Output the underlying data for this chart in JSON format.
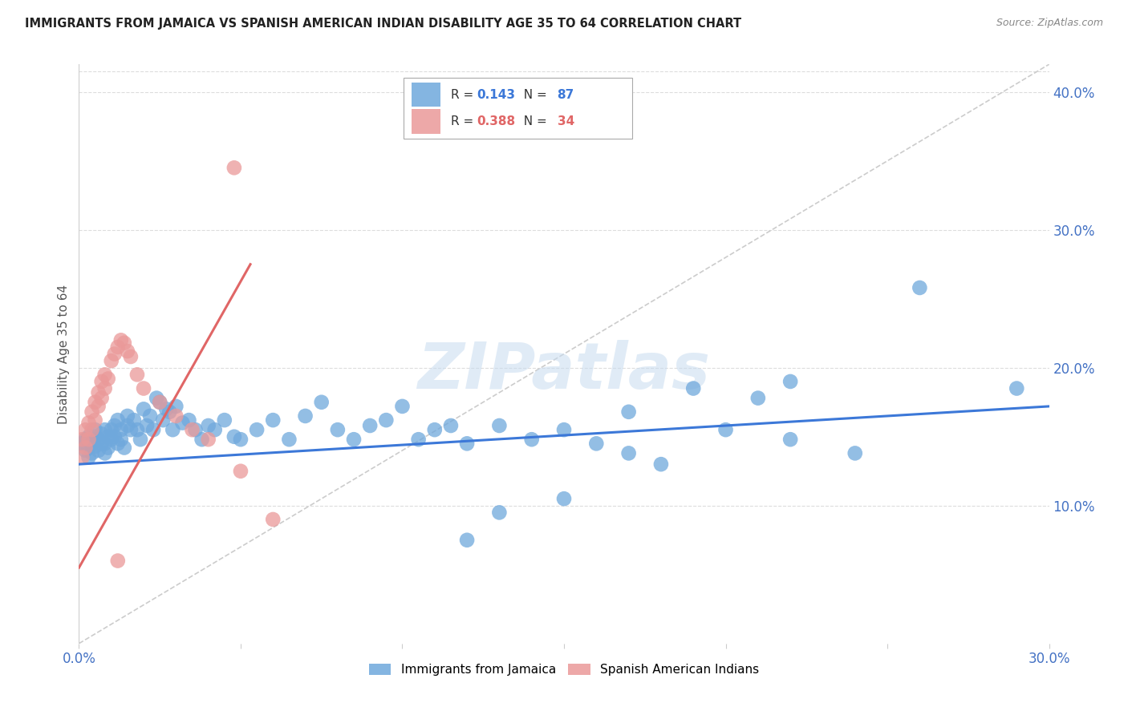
{
  "title": "IMMIGRANTS FROM JAMAICA VS SPANISH AMERICAN INDIAN DISABILITY AGE 35 TO 64 CORRELATION CHART",
  "source": "Source: ZipAtlas.com",
  "ylabel": "Disability Age 35 to 64",
  "x_min": 0.0,
  "x_max": 0.3,
  "y_min": 0.0,
  "y_max": 0.42,
  "blue_color": "#6fa8dc",
  "pink_color": "#ea9999",
  "blue_line_color": "#3c78d8",
  "pink_line_color": "#e06666",
  "diagonal_line_color": "#cccccc",
  "legend_R_blue": "0.143",
  "legend_N_blue": "87",
  "legend_R_pink": "0.388",
  "legend_N_pink": "34",
  "watermark": "ZIPatlas",
  "blue_scatter_x": [
    0.001,
    0.002,
    0.002,
    0.003,
    0.003,
    0.003,
    0.004,
    0.004,
    0.005,
    0.005,
    0.005,
    0.006,
    0.006,
    0.007,
    0.007,
    0.008,
    0.008,
    0.008,
    0.009,
    0.009,
    0.01,
    0.01,
    0.011,
    0.011,
    0.012,
    0.012,
    0.013,
    0.013,
    0.014,
    0.015,
    0.015,
    0.016,
    0.017,
    0.018,
    0.019,
    0.02,
    0.021,
    0.022,
    0.023,
    0.024,
    0.025,
    0.026,
    0.027,
    0.028,
    0.029,
    0.03,
    0.032,
    0.034,
    0.036,
    0.038,
    0.04,
    0.042,
    0.045,
    0.048,
    0.05,
    0.055,
    0.06,
    0.065,
    0.07,
    0.075,
    0.08,
    0.085,
    0.09,
    0.095,
    0.1,
    0.105,
    0.11,
    0.115,
    0.12,
    0.13,
    0.14,
    0.15,
    0.16,
    0.17,
    0.18,
    0.19,
    0.2,
    0.22,
    0.24,
    0.26,
    0.21,
    0.17,
    0.13,
    0.22,
    0.29,
    0.15,
    0.12
  ],
  "blue_scatter_y": [
    0.145,
    0.14,
    0.148,
    0.135,
    0.142,
    0.15,
    0.138,
    0.145,
    0.143,
    0.15,
    0.155,
    0.14,
    0.148,
    0.145,
    0.152,
    0.138,
    0.145,
    0.155,
    0.142,
    0.15,
    0.148,
    0.155,
    0.15,
    0.158,
    0.145,
    0.162,
    0.148,
    0.155,
    0.142,
    0.158,
    0.165,
    0.155,
    0.162,
    0.155,
    0.148,
    0.17,
    0.158,
    0.165,
    0.155,
    0.178,
    0.175,
    0.162,
    0.17,
    0.168,
    0.155,
    0.172,
    0.16,
    0.162,
    0.155,
    0.148,
    0.158,
    0.155,
    0.162,
    0.15,
    0.148,
    0.155,
    0.162,
    0.148,
    0.165,
    0.175,
    0.155,
    0.148,
    0.158,
    0.162,
    0.172,
    0.148,
    0.155,
    0.158,
    0.145,
    0.158,
    0.148,
    0.155,
    0.145,
    0.138,
    0.13,
    0.185,
    0.155,
    0.148,
    0.138,
    0.258,
    0.178,
    0.168,
    0.095,
    0.19,
    0.185,
    0.105,
    0.075
  ],
  "pink_scatter_x": [
    0.001,
    0.001,
    0.002,
    0.002,
    0.003,
    0.003,
    0.004,
    0.004,
    0.005,
    0.005,
    0.006,
    0.006,
    0.007,
    0.007,
    0.008,
    0.008,
    0.009,
    0.01,
    0.011,
    0.012,
    0.013,
    0.014,
    0.015,
    0.016,
    0.018,
    0.02,
    0.025,
    0.03,
    0.035,
    0.04,
    0.05,
    0.06,
    0.048,
    0.012
  ],
  "pink_scatter_y": [
    0.135,
    0.148,
    0.142,
    0.155,
    0.148,
    0.16,
    0.155,
    0.168,
    0.162,
    0.175,
    0.172,
    0.182,
    0.178,
    0.19,
    0.185,
    0.195,
    0.192,
    0.205,
    0.21,
    0.215,
    0.22,
    0.218,
    0.212,
    0.208,
    0.195,
    0.185,
    0.175,
    0.165,
    0.155,
    0.148,
    0.125,
    0.09,
    0.345,
    0.06
  ],
  "blue_line_x": [
    0.0,
    0.3
  ],
  "blue_line_y": [
    0.13,
    0.172
  ],
  "pink_line_x": [
    0.0,
    0.053
  ],
  "pink_line_y": [
    0.055,
    0.275
  ],
  "diag_line_x": [
    0.0,
    0.3
  ],
  "diag_line_y": [
    0.0,
    0.42
  ]
}
